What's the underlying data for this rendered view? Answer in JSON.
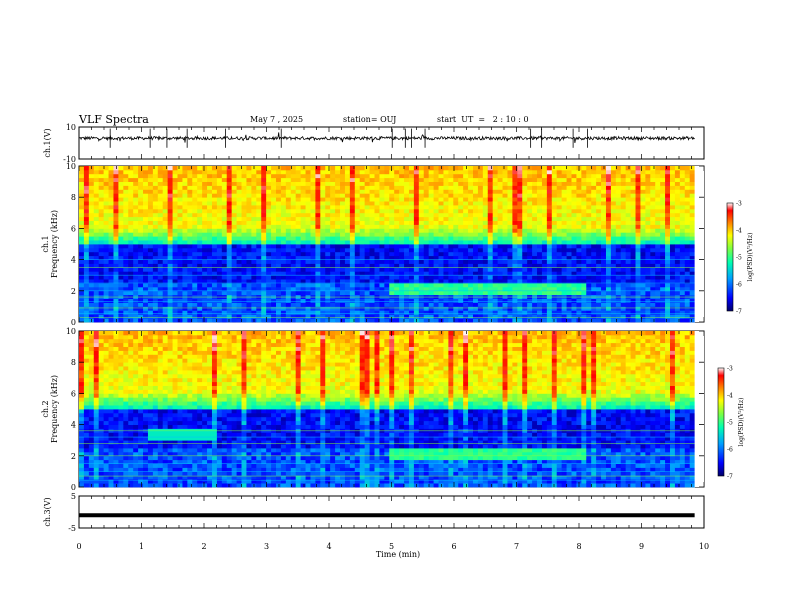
{
  "header": {
    "title": "VLF Spectra",
    "date": "May 7 , 2025",
    "station": "station= OUJ",
    "start_ut": "start  UT  =   2 : 10 : 0"
  },
  "colors": {
    "spectrum_scale": [
      "#000066",
      "#0000ff",
      "#00a0ff",
      "#00ffb0",
      "#80ff40",
      "#ffff00",
      "#ff8000",
      "#ff0000",
      "#ffffff"
    ],
    "trace": "#000000",
    "axis": "#000000"
  },
  "chart_data": [
    {
      "type": "line",
      "panel": "ch1-waveform",
      "ylabel": "ch.1(V)",
      "ylim": [
        -10,
        10
      ],
      "y_ticks": [
        "10",
        "-10"
      ],
      "xlim": [
        0,
        9.85
      ],
      "trace_level": 3,
      "trace_noise": 1
    },
    {
      "type": "heatmap",
      "panel": "ch1-spectrogram",
      "ylabel_line1": "ch.1",
      "ylabel_line2": "Frequency  (kHz)",
      "ylim": [
        0,
        10
      ],
      "y_ticks": [
        "0",
        "2",
        "4",
        "6",
        "8",
        "10"
      ],
      "xlim": [
        0,
        9.85
      ],
      "colorbar": {
        "label": "log(PSD)(V²/Hz)",
        "range": [
          -7,
          -3
        ],
        "ticks": [
          "-3",
          "-4",
          "-5",
          "-6",
          "-7"
        ]
      }
    },
    {
      "type": "heatmap",
      "panel": "ch2-spectrogram",
      "ylabel_line1": "ch.2",
      "ylabel_line2": "Frequency  (kHz)",
      "ylim": [
        0,
        10
      ],
      "y_ticks": [
        "0",
        "2",
        "4",
        "6",
        "8",
        "10"
      ],
      "xlim": [
        0,
        9.85
      ],
      "colorbar": {
        "label": "log(PSD)(V²/Hz)",
        "range": [
          -7,
          -3
        ],
        "ticks": [
          "-3",
          "-4",
          "-5",
          "-6",
          "-7"
        ]
      }
    },
    {
      "type": "line",
      "panel": "ch3-waveform",
      "ylabel": "ch.3(V)",
      "ylim": [
        -5,
        5
      ],
      "y_ticks": [
        "5",
        "-5"
      ],
      "xlim": [
        0,
        9.85
      ],
      "trace_level": -1,
      "trace_noise": 0
    }
  ],
  "x_axis": {
    "label": "Time  (min)",
    "range": [
      0,
      10
    ],
    "ticks": [
      "0",
      "1",
      "2",
      "3",
      "4",
      "5",
      "6",
      "7",
      "8",
      "9",
      "10"
    ]
  }
}
